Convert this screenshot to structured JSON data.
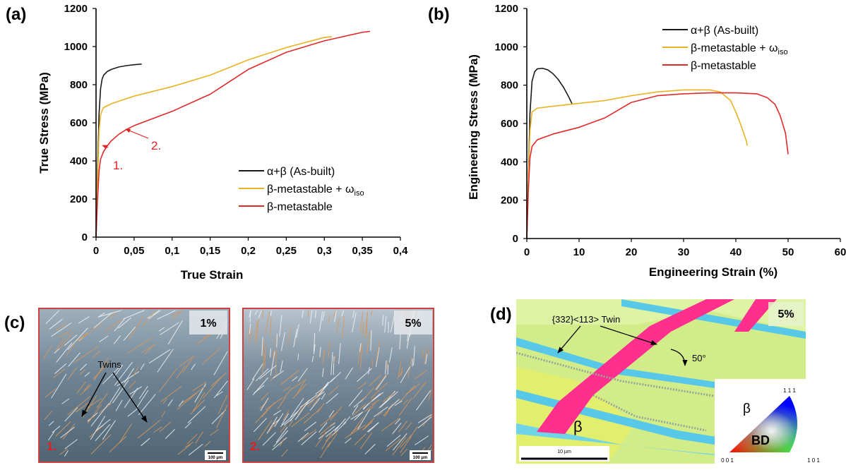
{
  "panels": {
    "a": "(a)",
    "b": "(b)",
    "c": "(c)",
    "d": "(d)"
  },
  "colors": {
    "as_built": "#1a1a1a",
    "omega": "#e8b222",
    "metastable": "#e02a2a",
    "red_label": "#e02020",
    "micrograph_border": "#d04040"
  },
  "chart_data": [
    {
      "id": "a",
      "type": "line",
      "xlabel": "True Strain",
      "ylabel": "True Stress (MPa)",
      "xlim": [
        0,
        0.4
      ],
      "ylim": [
        0,
        1200
      ],
      "xticks": [
        0,
        0.05,
        0.1,
        0.15,
        0.2,
        0.25,
        0.3,
        0.35,
        0.4
      ],
      "xtick_labels": [
        "0",
        "0,05",
        "0,1",
        "0,15",
        "0,2",
        "0,25",
        "0,3",
        "0,35",
        "0,4"
      ],
      "yticks": [
        0,
        200,
        400,
        600,
        800,
        1000,
        1200
      ],
      "ytick_labels": [
        "0",
        "200",
        "400",
        "600",
        "800",
        "1000",
        "1200"
      ],
      "legend": {
        "position": "lower-right",
        "entries": [
          {
            "label": "α+β (As-built)",
            "color_key": "as_built"
          },
          {
            "label": "β-metastable + ω",
            "sub": "iso",
            "color_key": "omega"
          },
          {
            "label": "β-metastable",
            "color_key": "metastable"
          }
        ]
      },
      "annotations": [
        {
          "text": "1.",
          "x": 0.012,
          "y": 470
        },
        {
          "text": "2.",
          "x": 0.043,
          "y": 565
        }
      ],
      "series": [
        {
          "name": "α+β (As-built)",
          "color_key": "as_built",
          "x": [
            0,
            0.002,
            0.004,
            0.006,
            0.008,
            0.01,
            0.015,
            0.02,
            0.03,
            0.04,
            0.05,
            0.06
          ],
          "y": [
            0,
            350,
            650,
            780,
            830,
            850,
            870,
            880,
            893,
            900,
            905,
            908
          ]
        },
        {
          "name": "β-metastable + ω",
          "color_key": "omega",
          "x": [
            0,
            0.002,
            0.004,
            0.006,
            0.008,
            0.01,
            0.02,
            0.05,
            0.1,
            0.15,
            0.2,
            0.25,
            0.3,
            0.31
          ],
          "y": [
            0,
            300,
            560,
            640,
            665,
            680,
            700,
            740,
            790,
            850,
            930,
            995,
            1048,
            1052
          ]
        },
        {
          "name": "β-metastable",
          "color_key": "metastable",
          "x": [
            0,
            0.002,
            0.004,
            0.006,
            0.01,
            0.015,
            0.02,
            0.03,
            0.04,
            0.05,
            0.1,
            0.15,
            0.2,
            0.25,
            0.3,
            0.35,
            0.36
          ],
          "y": [
            0,
            200,
            350,
            410,
            450,
            480,
            505,
            540,
            565,
            585,
            660,
            750,
            880,
            970,
            1030,
            1075,
            1080
          ]
        }
      ]
    },
    {
      "id": "b",
      "type": "line",
      "xlabel": "Engineering Strain (%)",
      "ylabel": "Engineering Stress (MPa)",
      "xlim": [
        0,
        60
      ],
      "ylim": [
        0,
        1200
      ],
      "xticks": [
        0,
        10,
        20,
        30,
        40,
        50,
        60
      ],
      "xtick_labels": [
        "0",
        "10",
        "20",
        "30",
        "40",
        "50",
        "60"
      ],
      "yticks": [
        0,
        200,
        400,
        600,
        800,
        1000,
        1200
      ],
      "ytick_labels": [
        "0",
        "200",
        "400",
        "600",
        "800",
        "1000",
        "1200"
      ],
      "legend": {
        "position": "top-right",
        "entries": [
          {
            "label": "α+β (As-built)",
            "color_key": "as_built"
          },
          {
            "label": "β-metastable + ω",
            "sub": "iso",
            "color_key": "omega"
          },
          {
            "label": "β-metastable",
            "color_key": "metastable"
          }
        ]
      },
      "series": [
        {
          "name": "α+β (As-built)",
          "color_key": "as_built",
          "x": [
            0,
            0.3,
            0.6,
            1,
            1.5,
            2,
            3,
            4,
            5,
            6,
            7,
            8,
            8.7
          ],
          "y": [
            0,
            300,
            650,
            820,
            870,
            885,
            888,
            880,
            860,
            830,
            790,
            740,
            700
          ]
        },
        {
          "name": "β-metastable + ω",
          "color_key": "omega",
          "x": [
            0,
            0.3,
            0.6,
            1,
            2,
            5,
            10,
            15,
            20,
            25,
            30,
            35,
            37,
            39,
            40,
            41,
            42,
            42.2
          ],
          "y": [
            0,
            300,
            560,
            660,
            680,
            690,
            705,
            720,
            745,
            765,
            775,
            775,
            765,
            720,
            660,
            590,
            510,
            485
          ]
        },
        {
          "name": "β-metastable",
          "color_key": "metastable",
          "x": [
            0,
            0.3,
            0.6,
            1,
            2,
            5,
            10,
            15,
            20,
            25,
            30,
            35,
            40,
            44,
            46,
            47.5,
            48.5,
            49.5,
            50
          ],
          "y": [
            0,
            250,
            420,
            480,
            515,
            545,
            580,
            630,
            710,
            745,
            755,
            760,
            760,
            755,
            735,
            700,
            640,
            550,
            440
          ]
        }
      ]
    }
  ],
  "panel_c": {
    "left": {
      "percent": "1%",
      "number": "1.",
      "scale": "100 µm",
      "twins_label": "Twins"
    },
    "right": {
      "percent": "5%",
      "number": "2.",
      "scale": "100 µm"
    }
  },
  "panel_d": {
    "percent": "5%",
    "twin_label": "{332}<113> Twin",
    "angle_label": "50°",
    "phase_label": "β",
    "scale": "10 µm",
    "ipf": {
      "phase": "β",
      "direction": "BD",
      "corner_001": "0 0 1",
      "corner_101": "1 0 1",
      "corner_111": "1 1 1"
    }
  }
}
